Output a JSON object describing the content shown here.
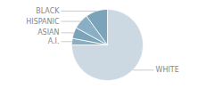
{
  "chart_data": {
    "type": "pie",
    "categories": [
      "WHITE",
      "A.I.",
      "ASIAN",
      "HISPANIC",
      "BLACK"
    ],
    "values": [
      75,
      3,
      5,
      7,
      10
    ],
    "colors": [
      "#ccd9e3",
      "#8aafc4",
      "#7ba3ba",
      "#8aafc4",
      "#7ba3ba"
    ]
  }
}
